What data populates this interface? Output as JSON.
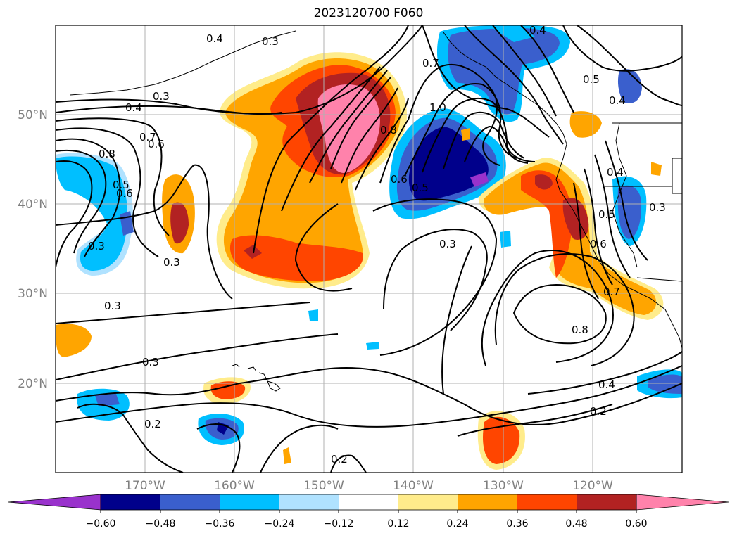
{
  "title": "2023120700 F060",
  "map": {
    "lon_range": [
      -180,
      -110
    ],
    "lat_range": [
      10,
      60
    ],
    "lat_ticks": [
      {
        "lat": 50,
        "label": "50°N"
      },
      {
        "lat": 40,
        "label": "40°N"
      },
      {
        "lat": 30,
        "label": "30°N"
      },
      {
        "lat": 20,
        "label": "20°N"
      }
    ],
    "lon_ticks": [
      {
        "lon": -170,
        "label": "170°W"
      },
      {
        "lon": -160,
        "label": "160°W"
      },
      {
        "lon": -150,
        "label": "150°W"
      },
      {
        "lon": -140,
        "label": "140°W"
      },
      {
        "lon": -130,
        "label": "130°W"
      },
      {
        "lon": -120,
        "label": "120°W"
      }
    ],
    "gridlines": true,
    "contour_labels": [
      "0.4",
      "0.3",
      "0.3",
      "0.4",
      "0.7",
      "0.6",
      "0.8",
      "0.7",
      "0.6",
      "0.5",
      "0.4",
      "1.0",
      "0.8",
      "0.6",
      "0.5",
      "0.3",
      "0.3",
      "0.3",
      "0.3",
      "0.3",
      "0.2",
      "0.2",
      "0.8",
      "0.7",
      "0.6",
      "0.5",
      "0.4",
      "0.3",
      "0.4",
      "0.2",
      "0.5",
      "0.4"
    ]
  },
  "colorbar": {
    "colors": [
      "#9932CC",
      "#00008B",
      "#3A5FCD",
      "#00BFFF",
      "#B0E2FF",
      "#FFFFFF",
      "#FFEC8B",
      "#FFA500",
      "#FF4500",
      "#B22222",
      "#FF82AB"
    ],
    "labels": [
      "−0.60",
      "−0.48",
      "−0.36",
      "−0.24",
      "−0.12",
      "0.12",
      "0.24",
      "0.36",
      "0.48",
      "0.60"
    ],
    "extend": "both"
  }
}
